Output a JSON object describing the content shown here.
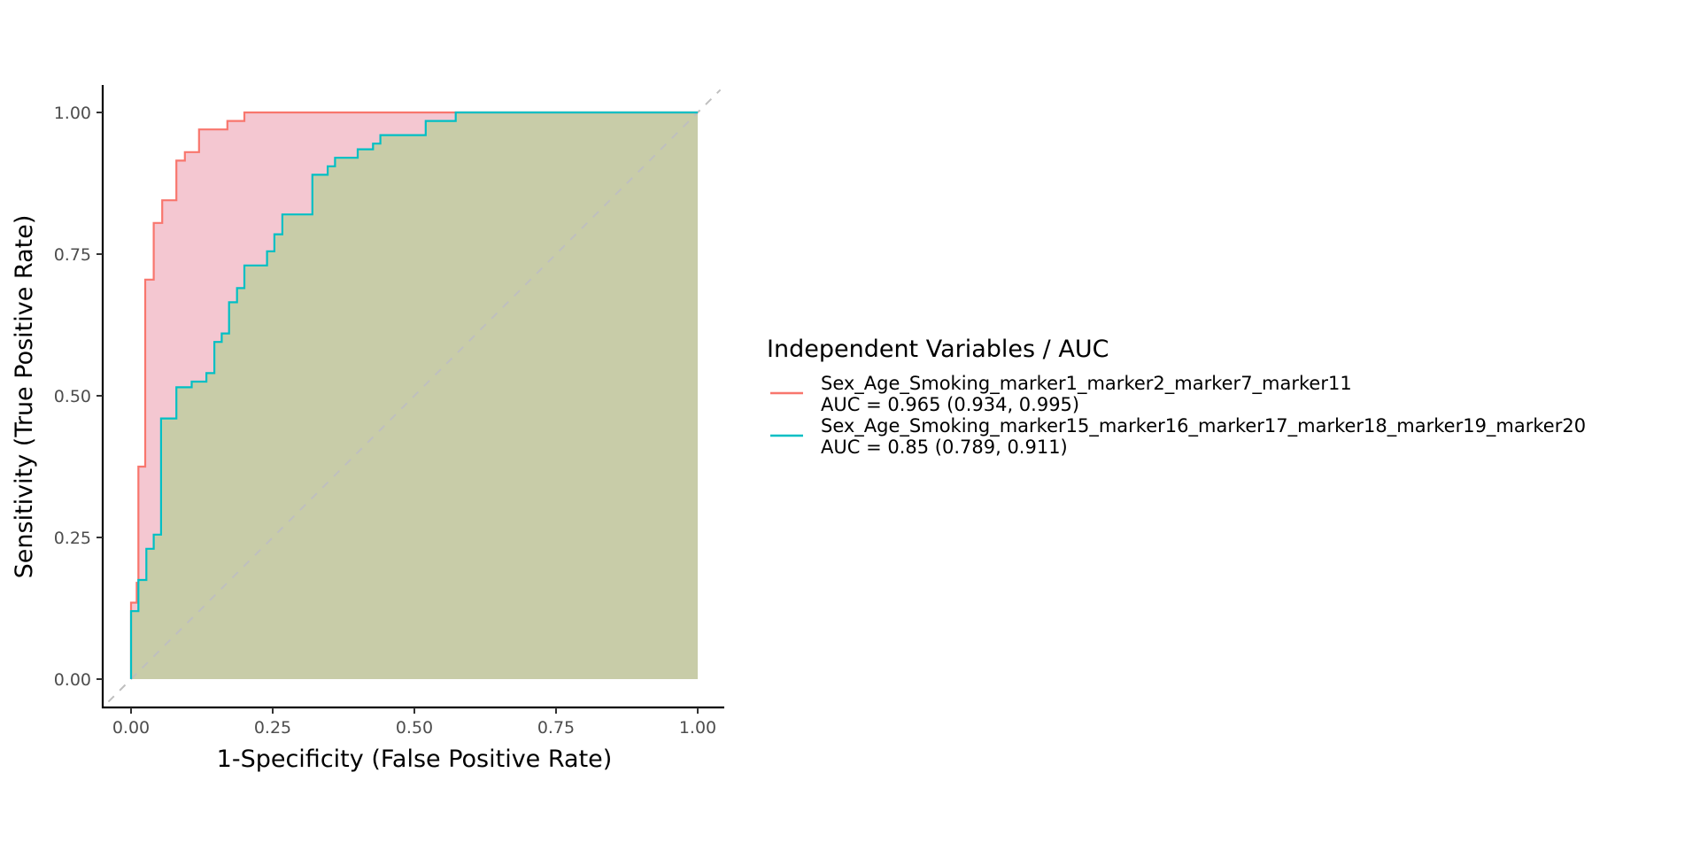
{
  "chart_data": {
    "type": "line",
    "title": "",
    "xlabel": "1-Specificity (False Positive Rate)",
    "ylabel": "Sensitivity (True Positive Rate)",
    "xlim": [
      0,
      1
    ],
    "ylim": [
      0,
      1
    ],
    "x_ticks": [
      "0.00",
      "0.25",
      "0.50",
      "0.75",
      "1.00"
    ],
    "y_ticks": [
      "0.00",
      "0.25",
      "0.50",
      "0.75",
      "1.00"
    ],
    "grid": false,
    "reference_line": "diagonal, dashed",
    "legend": {
      "title": "Independent Variables / AUC",
      "placement": "right"
    },
    "series": [
      {
        "name": "Sex_Age_Smoking_marker1_marker2_marker7_marker11",
        "auc_label": "AUC = 0.965 (0.934, 0.995)",
        "color": "#F8766D",
        "fill": "#F4C7D1",
        "x": [
          0,
          0,
          0.01,
          0.01,
          0.013,
          0.013,
          0.025,
          0.025,
          0.04,
          0.04,
          0.055,
          0.055,
          0.08,
          0.08,
          0.095,
          0.095,
          0.12,
          0.12,
          0.17,
          0.17,
          0.2,
          0.2,
          0.4,
          0.58,
          1.0
        ],
        "y": [
          0,
          0.135,
          0.135,
          0.17,
          0.17,
          0.375,
          0.375,
          0.705,
          0.705,
          0.805,
          0.805,
          0.845,
          0.845,
          0.915,
          0.915,
          0.93,
          0.93,
          0.97,
          0.97,
          0.985,
          0.985,
          1.0,
          1.0,
          1.0,
          1.0
        ]
      },
      {
        "name": "Sex_Age_Smoking_marker15_marker16_marker17_marker18_marker19_marker20",
        "auc_label": "AUC = 0.85 (0.789, 0.911)",
        "color": "#00BFC4",
        "fill": "#C8CCA8",
        "x": [
          0,
          0,
          0.013,
          0.013,
          0.027,
          0.027,
          0.04,
          0.04,
          0.053,
          0.053,
          0.08,
          0.08,
          0.107,
          0.107,
          0.133,
          0.133,
          0.147,
          0.147,
          0.16,
          0.16,
          0.173,
          0.173,
          0.187,
          0.187,
          0.2,
          0.2,
          0.24,
          0.24,
          0.253,
          0.253,
          0.267,
          0.267,
          0.32,
          0.32,
          0.347,
          0.347,
          0.36,
          0.36,
          0.4,
          0.4,
          0.427,
          0.427,
          0.44,
          0.44,
          0.52,
          0.52,
          0.573,
          0.573,
          1.0
        ],
        "y": [
          0,
          0.12,
          0.12,
          0.175,
          0.175,
          0.23,
          0.23,
          0.255,
          0.255,
          0.46,
          0.46,
          0.515,
          0.515,
          0.525,
          0.525,
          0.54,
          0.54,
          0.595,
          0.595,
          0.61,
          0.61,
          0.665,
          0.665,
          0.69,
          0.69,
          0.73,
          0.73,
          0.755,
          0.755,
          0.785,
          0.785,
          0.82,
          0.82,
          0.89,
          0.89,
          0.905,
          0.905,
          0.92,
          0.92,
          0.935,
          0.935,
          0.945,
          0.945,
          0.96,
          0.96,
          0.985,
          0.985,
          1.0,
          1.0
        ]
      }
    ]
  }
}
